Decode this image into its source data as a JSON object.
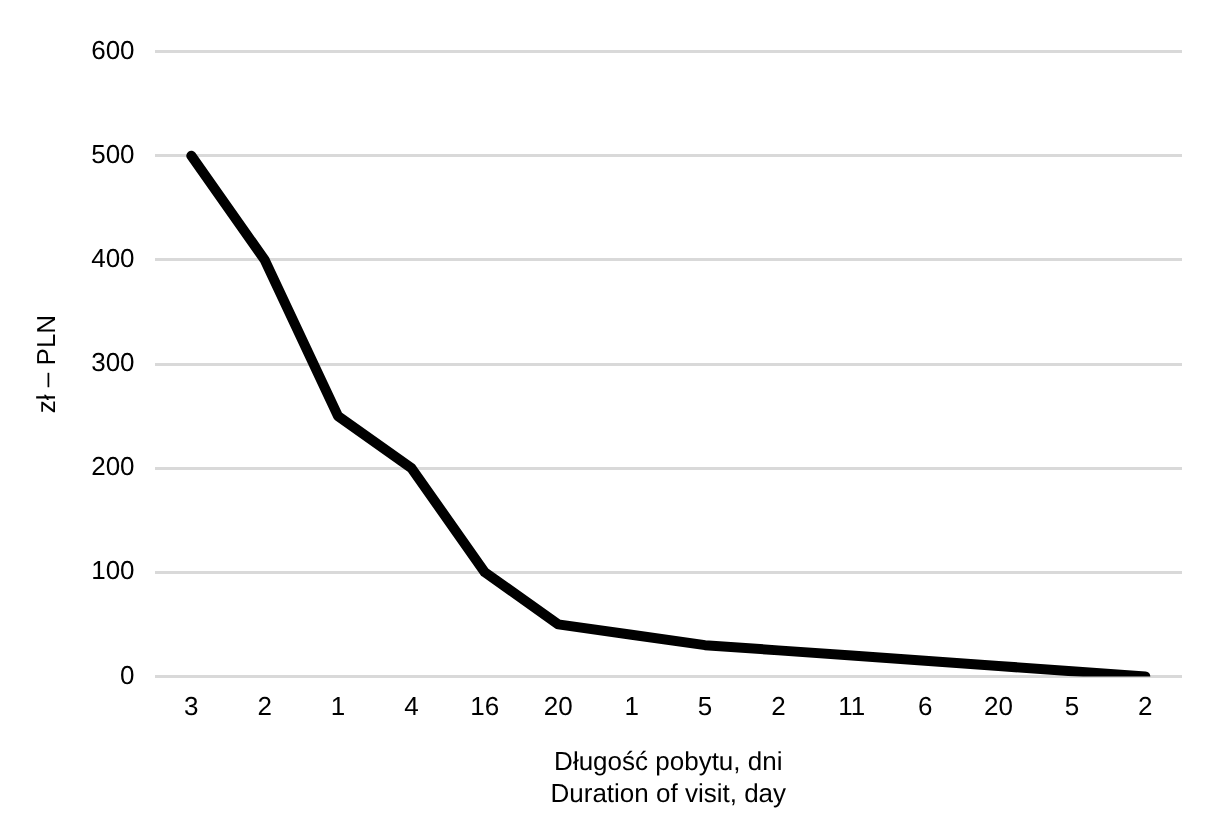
{
  "chart_data": {
    "type": "line",
    "xlabel": "Długość pobytu, dni\nDuration of visit, day",
    "ylabel": "zł – PLN",
    "categories": [
      "3",
      "2",
      "1",
      "4",
      "16",
      "20",
      "1",
      "5",
      "2",
      "11",
      "6",
      "20",
      "5",
      "2"
    ],
    "series": [
      {
        "color": "#000000",
        "values": [
          500,
          400,
          250,
          200,
          100,
          50,
          40,
          30,
          25,
          20,
          15,
          10,
          5,
          0
        ]
      }
    ],
    "ylim": [
      0,
      600
    ],
    "yticks": [
      0,
      100,
      200,
      300,
      400,
      500,
      600
    ],
    "grid": "y",
    "legend": false,
    "marker": "none",
    "line_style": "solid"
  }
}
